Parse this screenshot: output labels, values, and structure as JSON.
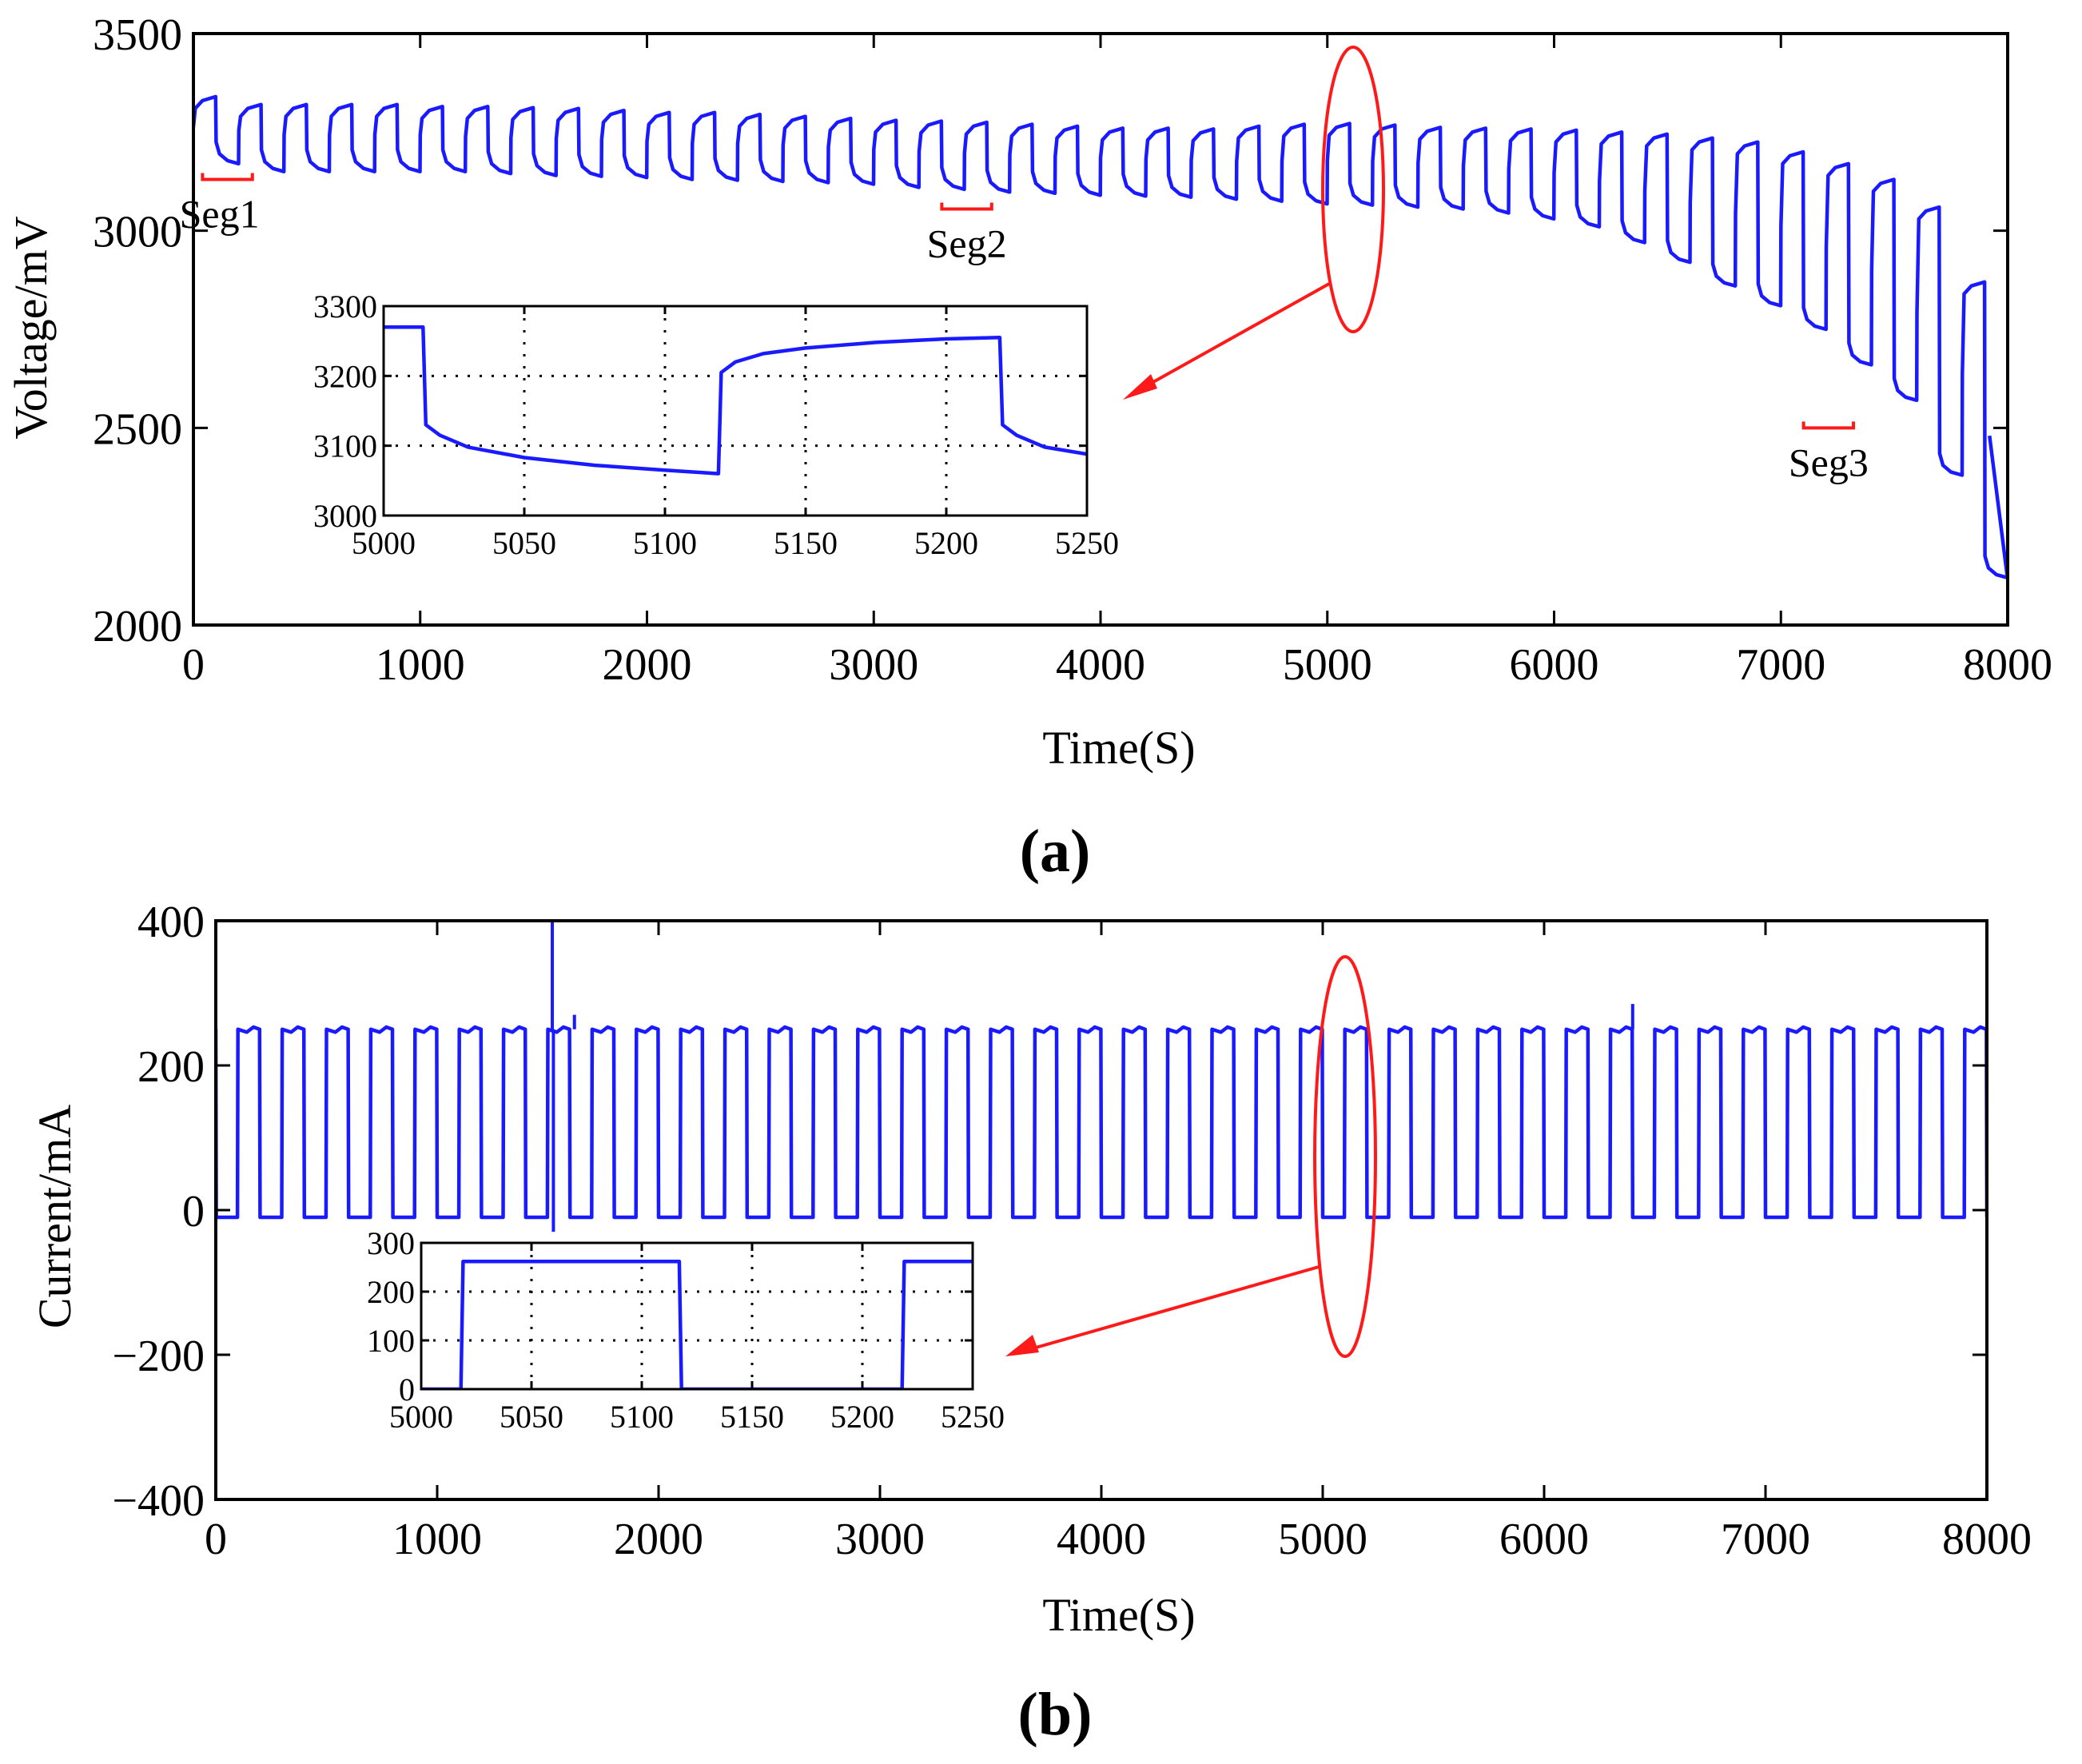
{
  "chart_data": [
    {
      "panel": "(a)",
      "type": "line",
      "xlabel": "Time(S)",
      "ylabel": "Voltage/mV",
      "xlim": [
        0,
        8000
      ],
      "ylim": [
        2000,
        3500
      ],
      "xticks": [
        0,
        1000,
        2000,
        3000,
        4000,
        5000,
        6000,
        7000,
        8000
      ],
      "yticks": [
        2000,
        2500,
        3000,
        3500
      ],
      "line_color": "#1a1aff",
      "pulse_period": 200,
      "pulse_count": 40,
      "series": [
        {
          "name": "Voltage",
          "description_points_note": "pulsed discharge: high (rest) and low (load) voltage per cycle",
          "cycle_start_times": [
            0,
            200,
            400,
            600,
            800,
            1000,
            1200,
            1400,
            1600,
            1800,
            2000,
            2200,
            2400,
            2600,
            2800,
            3000,
            3200,
            3400,
            3600,
            3800,
            4000,
            4200,
            4400,
            4600,
            4800,
            5000,
            5200,
            5400,
            5600,
            5800,
            6000,
            6200,
            6400,
            6600,
            6800,
            7000,
            7200,
            7400,
            7600,
            7800
          ],
          "high_mV": [
            3340,
            3320,
            3320,
            3320,
            3320,
            3315,
            3315,
            3312,
            3310,
            3305,
            3300,
            3300,
            3295,
            3290,
            3285,
            3280,
            3278,
            3275,
            3270,
            3265,
            3260,
            3260,
            3258,
            3265,
            3270,
            3272,
            3268,
            3262,
            3260,
            3258,
            3255,
            3250,
            3245,
            3235,
            3225,
            3200,
            3170,
            3130,
            3060,
            2870
          ],
          "low_mV": [
            3170,
            3150,
            3150,
            3150,
            3150,
            3150,
            3145,
            3140,
            3138,
            3135,
            3130,
            3128,
            3125,
            3122,
            3118,
            3110,
            3105,
            3098,
            3095,
            3090,
            3088,
            3085,
            3080,
            3075,
            3068,
            3065,
            3060,
            3055,
            3045,
            3030,
            3010,
            2970,
            2920,
            2860,
            2810,
            2750,
            2660,
            2570,
            2380,
            2120
          ]
        }
      ],
      "annotations": [
        {
          "text": "Seg1",
          "x_range": [
            40,
            260
          ]
        },
        {
          "text": "Seg2",
          "x_range": [
            3300,
            3520
          ]
        },
        {
          "text": "Seg3",
          "x_range": [
            7100,
            7320
          ]
        }
      ],
      "highlight_ellipse_center_x": 5110,
      "inset": {
        "xlim": [
          5000,
          5250
        ],
        "ylim": [
          3000,
          3300
        ],
        "xticks": [
          5000,
          5050,
          5100,
          5150,
          5200,
          5250
        ],
        "yticks": [
          3000,
          3100,
          3200,
          3300
        ],
        "grid": "dotted",
        "points": [
          [
            5000,
            3270
          ],
          [
            5014,
            3270
          ],
          [
            5015,
            3130
          ],
          [
            5020,
            3115
          ],
          [
            5030,
            3098
          ],
          [
            5050,
            3083
          ],
          [
            5075,
            3072
          ],
          [
            5100,
            3065
          ],
          [
            5119,
            3060
          ],
          [
            5120,
            3205
          ],
          [
            5125,
            3220
          ],
          [
            5135,
            3232
          ],
          [
            5150,
            3240
          ],
          [
            5175,
            3248
          ],
          [
            5200,
            3253
          ],
          [
            5219,
            3255
          ],
          [
            5220,
            3130
          ],
          [
            5225,
            3115
          ],
          [
            5235,
            3098
          ],
          [
            5250,
            3088
          ]
        ]
      }
    },
    {
      "panel": "(b)",
      "type": "line",
      "xlabel": "Time(S)",
      "ylabel": "Current/mA",
      "xlim": [
        0,
        8000
      ],
      "ylim": [
        -400,
        400
      ],
      "xticks": [
        0,
        1000,
        2000,
        3000,
        4000,
        5000,
        6000,
        7000,
        8000
      ],
      "yticks": [
        -400,
        -200,
        0,
        200,
        400
      ],
      "line_color": "#1a1aff",
      "pulse_period": 200,
      "pulse_count": 40,
      "series": [
        {
          "name": "Current",
          "high_mA": 250,
          "low_mA": -10,
          "spikes": [
            [
              1520,
              400
            ],
            [
              1525,
              -30
            ],
            [
              1620,
              270
            ],
            [
              6400,
              285
            ]
          ]
        }
      ],
      "highlight_ellipse_center_x": 5110,
      "inset": {
        "xlim": [
          5000,
          5250
        ],
        "ylim": [
          0,
          300
        ],
        "xticks": [
          5000,
          5050,
          5100,
          5150,
          5200,
          5250
        ],
        "yticks": [
          0,
          100,
          200,
          300
        ],
        "grid": "dotted",
        "points": [
          [
            5000,
            0
          ],
          [
            5018,
            0
          ],
          [
            5019,
            262
          ],
          [
            5117,
            262
          ],
          [
            5118,
            0
          ],
          [
            5218,
            0
          ],
          [
            5219,
            262
          ],
          [
            5250,
            262
          ]
        ]
      }
    }
  ]
}
